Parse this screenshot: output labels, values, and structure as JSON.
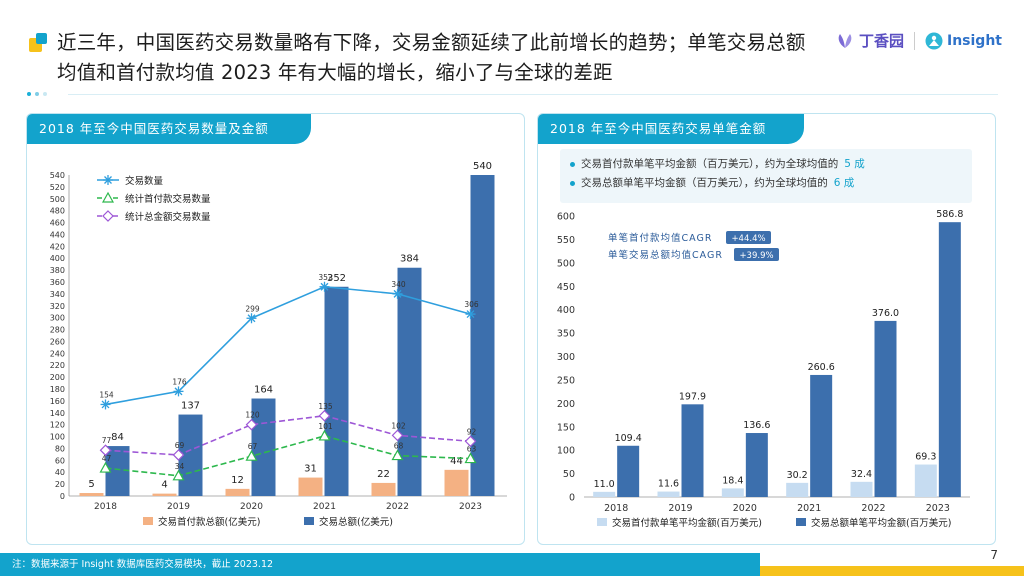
{
  "header": {
    "title": "近三年，中国医药交易数量略有下降，交易金额延续了此前增长的趋势；单笔交易总额均值和首付款均值 2023 年有大幅的增长，缩小了与全球的差距",
    "logo_dxy": "丁香园",
    "logo_insight": "Insight",
    "colors": {
      "accent": "#13a3cc",
      "title_icon": "#f6c21b"
    }
  },
  "left_panel": {
    "title": "2018 年至今中国医药交易数量及金额"
  },
  "right_panel": {
    "title": "2018 年至今中国医药交易单笔金额",
    "note1_prefix": "交易首付款单笔平均金额（百万美元），约为全球均值的",
    "note1_highlight": "5 成",
    "note2_prefix": "交易总额单笔平均金额（百万美元），约为全球均值的",
    "note2_highlight": "6 成"
  },
  "chart_data": [
    {
      "type": "bar",
      "categories": [
        "2018",
        "2019",
        "2020",
        "2021",
        "2022",
        "2023"
      ],
      "ylim": [
        0,
        540
      ],
      "yticks": [
        0,
        20,
        40,
        60,
        80,
        100,
        120,
        140,
        160,
        180,
        200,
        220,
        240,
        260,
        280,
        300,
        320,
        340,
        360,
        380,
        400,
        420,
        440,
        460,
        480,
        500,
        520,
        540
      ],
      "grid": false,
      "legend": [
        "交易首付款总额(亿美元)",
        "交易总额(亿美元)"
      ],
      "series": [
        {
          "name": "交易首付款总额(亿美元)",
          "kind": "bar",
          "color": "#f4b183",
          "values": [
            5,
            4,
            12,
            31,
            22,
            44
          ]
        },
        {
          "name": "交易总额(亿美元)",
          "kind": "bar",
          "color": "#3c6fad",
          "values": [
            84,
            137,
            164,
            352,
            384,
            540
          ]
        },
        {
          "name": "交易数量",
          "kind": "line",
          "color": "#2f9fde",
          "marker": "star",
          "dash": false,
          "values": [
            154,
            176,
            299,
            352,
            340,
            306
          ]
        },
        {
          "name": "统计首付款交易数量",
          "kind": "line",
          "color": "#2db84d",
          "marker": "triangle",
          "dash": true,
          "values": [
            47,
            34,
            67,
            101,
            68,
            63
          ]
        },
        {
          "name": "统计总金额交易数量",
          "kind": "line",
          "color": "#9d57d6",
          "marker": "diamond",
          "dash": true,
          "values": [
            77,
            69,
            120,
            135,
            102,
            92
          ]
        }
      ],
      "line_legend": [
        "交易数量",
        "统计首付款交易数量",
        "统计总金额交易数量"
      ]
    },
    {
      "type": "bar",
      "categories": [
        "2018",
        "2019",
        "2020",
        "2021",
        "2022",
        "2023"
      ],
      "ylim": [
        0,
        600
      ],
      "yticks": [
        0,
        50,
        100,
        150,
        200,
        250,
        300,
        350,
        400,
        450,
        500,
        550,
        600
      ],
      "grid": false,
      "series": [
        {
          "name": "交易首付款单笔平均金额(百万美元)",
          "color": "#c6dcf1",
          "values": [
            11.0,
            11.6,
            18.4,
            30.2,
            32.4,
            69.3
          ],
          "labels": [
            "11.0",
            "11.6",
            "18.4",
            "30.2",
            "32.4",
            "69.3"
          ]
        },
        {
          "name": "交易总额单笔平均金额(百万美元)",
          "color": "#3c6fad",
          "values": [
            109.4,
            197.9,
            136.6,
            260.6,
            376.0,
            586.8
          ],
          "labels": [
            "109.4",
            "197.9",
            "136.6",
            "260.6",
            "376.0",
            "586.8"
          ]
        }
      ],
      "annotations": [
        {
          "label": "单笔首付款均值CAGR",
          "badge": "+44.4%"
        },
        {
          "label": "单笔交易总额均值CAGR",
          "badge": "+39.9%"
        }
      ]
    }
  ],
  "footer": {
    "note": "注：数据来源于 Insight 数据库医药交易模块，截止 2023.12",
    "page": "7"
  }
}
